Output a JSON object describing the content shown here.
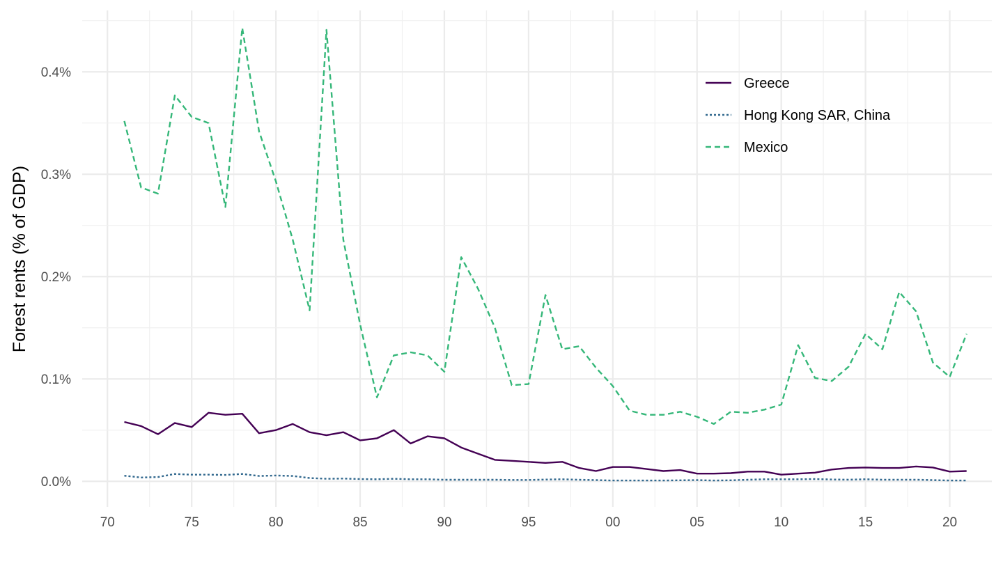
{
  "chart_data": {
    "type": "line",
    "title": "",
    "xlabel": "",
    "ylabel": "Forest rents (% of GDP)",
    "x_ticks": [
      "70",
      "75",
      "80",
      "85",
      "90",
      "95",
      "00",
      "05",
      "10",
      "15",
      "20"
    ],
    "y_ticks": [
      "0.0%",
      "0.1%",
      "0.2%",
      "0.3%",
      "0.4%"
    ],
    "xlim": [
      1968.5,
      2022.5
    ],
    "ylim": [
      -0.025,
      0.46
    ],
    "grid": true,
    "legend_position": "top-right",
    "x": [
      1971,
      1972,
      1973,
      1974,
      1975,
      1976,
      1977,
      1978,
      1979,
      1980,
      1981,
      1982,
      1983,
      1984,
      1985,
      1986,
      1987,
      1988,
      1989,
      1990,
      1991,
      1992,
      1993,
      1994,
      1995,
      1996,
      1997,
      1998,
      1999,
      2000,
      2001,
      2002,
      2003,
      2004,
      2005,
      2006,
      2007,
      2008,
      2009,
      2010,
      2011,
      2012,
      2013,
      2014,
      2015,
      2016,
      2017,
      2018,
      2019,
      2020,
      2021
    ],
    "series": [
      {
        "name": "Greece",
        "color": "#440154",
        "dash": "solid",
        "values": [
          0.058,
          0.054,
          0.046,
          0.057,
          0.053,
          0.067,
          0.065,
          0.066,
          0.047,
          0.05,
          0.056,
          0.048,
          0.045,
          0.048,
          0.04,
          0.042,
          0.05,
          0.037,
          0.044,
          0.042,
          0.033,
          0.027,
          0.021,
          0.02,
          0.019,
          0.018,
          0.019,
          0.013,
          0.01,
          0.014,
          0.014,
          0.012,
          0.01,
          0.011,
          0.0075,
          0.0075,
          0.008,
          0.0095,
          0.0095,
          0.0065,
          0.0075,
          0.0085,
          0.0115,
          0.013,
          0.0135,
          0.013,
          0.013,
          0.0145,
          0.0135,
          0.0095,
          0.01
        ]
      },
      {
        "name": "Hong Kong SAR, China",
        "color": "#31688e",
        "dash": "dotted",
        "values": [
          0.0055,
          0.0037,
          0.0042,
          0.0072,
          0.0065,
          0.0065,
          0.0062,
          0.0072,
          0.0052,
          0.0057,
          0.0052,
          0.0032,
          0.0025,
          0.0027,
          0.0022,
          0.002,
          0.0025,
          0.002,
          0.002,
          0.0015,
          0.0015,
          0.0015,
          0.0015,
          0.0013,
          0.0013,
          0.0017,
          0.002,
          0.0015,
          0.0012,
          0.0008,
          0.0008,
          0.0008,
          0.0008,
          0.001,
          0.0012,
          0.0008,
          0.001,
          0.0015,
          0.002,
          0.002,
          0.002,
          0.0022,
          0.0018,
          0.0016,
          0.002,
          0.0016,
          0.0016,
          0.0016,
          0.0012,
          0.0008,
          0.0008
        ]
      },
      {
        "name": "Mexico",
        "color": "#35b779",
        "dash": "dashed",
        "values": [
          0.352,
          0.287,
          0.281,
          0.377,
          0.356,
          0.35,
          0.268,
          0.443,
          0.342,
          0.293,
          0.236,
          0.167,
          0.441,
          0.236,
          0.153,
          0.082,
          0.123,
          0.126,
          0.123,
          0.107,
          0.219,
          0.188,
          0.15,
          0.094,
          0.095,
          0.182,
          0.129,
          0.132,
          0.111,
          0.093,
          0.069,
          0.065,
          0.065,
          0.068,
          0.063,
          0.056,
          0.068,
          0.067,
          0.07,
          0.075,
          0.133,
          0.101,
          0.098,
          0.112,
          0.144,
          0.129,
          0.185,
          0.166,
          0.116,
          0.102,
          0.144
        ]
      }
    ]
  }
}
